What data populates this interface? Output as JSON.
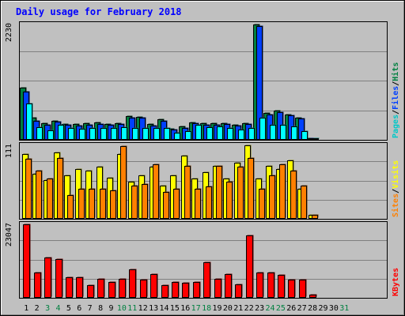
{
  "chart_data": {
    "type": "bar",
    "title": "Daily usage for February 2018",
    "days": [
      "1",
      "2",
      "3",
      "4",
      "5",
      "6",
      "7",
      "8",
      "9",
      "10",
      "11",
      "12",
      "13",
      "14",
      "15",
      "16",
      "17",
      "18",
      "19",
      "20",
      "21",
      "22",
      "23",
      "24",
      "25",
      "26",
      "27",
      "28",
      "29",
      "30",
      "31"
    ],
    "weekend_days": [
      "3",
      "4",
      "10",
      "11",
      "17",
      "18",
      "24",
      "25",
      "31"
    ],
    "panels": [
      {
        "id": "hits",
        "max_label": "2230",
        "ylim": [
          0,
          2230
        ],
        "legend": [
          {
            "label": "Pages",
            "color": "#00c8c8"
          },
          {
            "label": "/",
            "color": "#000000"
          },
          {
            "label": "Files",
            "color": "#0040ff"
          },
          {
            "label": "/",
            "color": "#000000"
          },
          {
            "label": "Hits",
            "color": "#008040"
          }
        ],
        "series": [
          {
            "name": "Hits",
            "color": "#008040",
            "values": [
              1000,
              410,
              300,
              360,
              290,
              290,
              300,
              320,
              290,
              310,
              450,
              430,
              290,
              390,
              200,
              240,
              330,
              300,
              300,
              310,
              280,
              310,
              2230,
              500,
              550,
              480,
              420,
              20,
              0,
              0,
              0
            ]
          },
          {
            "name": "Files",
            "color": "#0040ff",
            "values": [
              920,
              360,
              280,
              340,
              270,
              260,
              280,
              290,
              270,
              290,
              420,
              410,
              260,
              360,
              190,
              220,
              300,
              280,
              270,
              290,
              260,
              290,
              2200,
              480,
              520,
              460,
              400,
              15,
              0,
              0,
              0
            ]
          },
          {
            "name": "Pages",
            "color": "#00ffff",
            "values": [
              690,
              230,
              170,
              270,
              210,
              200,
              220,
              220,
              210,
              230,
              210,
              210,
              210,
              220,
              120,
              150,
              270,
              230,
              240,
              220,
              180,
              220,
              420,
              280,
              270,
              250,
              160,
              5,
              0,
              0,
              0
            ]
          }
        ]
      },
      {
        "id": "visits",
        "max_label": "111",
        "ylim": [
          0,
          111
        ],
        "legend": [
          {
            "label": "Sites",
            "color": "#ff8000"
          },
          {
            "label": "/",
            "color": "#000000"
          },
          {
            "label": "Visits",
            "color": "#ffff00"
          }
        ],
        "series": [
          {
            "name": "Visits",
            "color": "#ffff00",
            "values": [
              98,
              68,
              58,
              100,
              65,
              75,
              72,
              78,
              62,
              98,
              55,
              65,
              78,
              50,
              65,
              95,
              60,
              70,
              80,
              60,
              85,
              111,
              60,
              80,
              75,
              88,
              45,
              5,
              0,
              0,
              0
            ]
          },
          {
            "name": "Sites",
            "color": "#ff8000",
            "values": [
              90,
              72,
              60,
              92,
              35,
              45,
              45,
              45,
              42,
              110,
              50,
              52,
              82,
              40,
              45,
              80,
              45,
              48,
              80,
              55,
              78,
              92,
              45,
              65,
              82,
              72,
              50,
              5,
              0,
              0,
              0
            ]
          }
        ]
      },
      {
        "id": "kbytes",
        "max_label": "23047",
        "ylim": [
          0,
          23047
        ],
        "legend": [
          {
            "label": "KBytes",
            "color": "#ff0000"
          }
        ],
        "series": [
          {
            "name": "KBytes",
            "color": "#ff0000",
            "values": [
              23047,
              7700,
              12500,
              12000,
              6200,
              6200,
              3800,
              5800,
              4700,
              5800,
              8700,
              5500,
              7200,
              3800,
              4800,
              4400,
              4700,
              11000,
              5800,
              7300,
              4000,
              19600,
              7700,
              7700,
              7100,
              5600,
              5600,
              650,
              0,
              0,
              0
            ]
          }
        ]
      }
    ]
  }
}
